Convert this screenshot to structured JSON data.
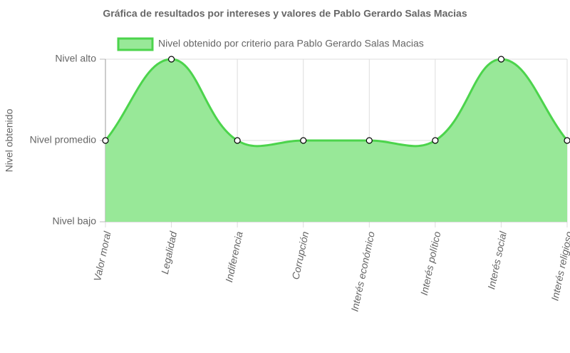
{
  "chart_data": {
    "type": "line",
    "title": "Gráfica de resultados por intereses y valores de Pablo Gerardo Salas Macias",
    "y_label": "Nivel obtenido",
    "categories": [
      "Valor moral",
      "Legalidad",
      "Indiferencia",
      "Corrupción",
      "Interés económico",
      "Interés político",
      "Interés social",
      "Interés religioso"
    ],
    "series": [
      {
        "name": "Nivel obtenido por criterio para Pablo Gerardo Salas Macias",
        "color": "#4cd44c",
        "fill_color": "#98e898",
        "values": [
          2,
          3,
          2,
          2,
          2,
          2,
          3,
          2
        ]
      }
    ],
    "ylim": [
      1,
      3
    ],
    "yticks": [
      {
        "value": 1,
        "label": "Nivel bajo"
      },
      {
        "value": 2,
        "label": "Nivel promedio"
      },
      {
        "value": 3,
        "label": "Nivel alto"
      }
    ],
    "grid": true,
    "smooth": true,
    "fill": true,
    "legend": "top"
  }
}
